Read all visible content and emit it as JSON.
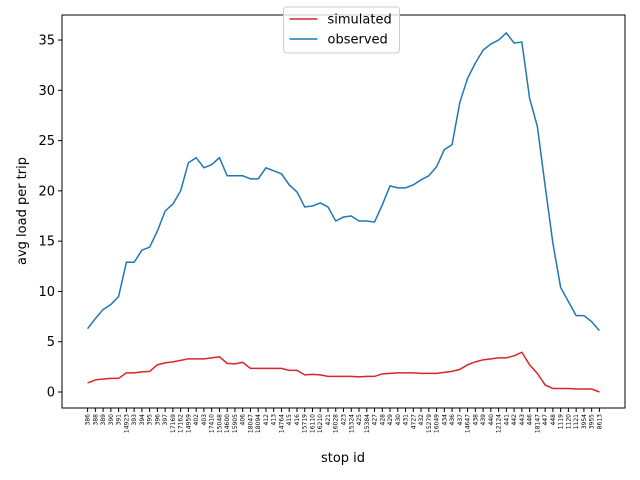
{
  "chart_data": {
    "type": "line",
    "xlabel": "stop id",
    "ylabel": "avg load per trip",
    "categories": [
      "386",
      "388",
      "389",
      "390",
      "391",
      "14923",
      "393",
      "394",
      "395",
      "396",
      "397",
      "17169",
      "17162",
      "14959",
      "402",
      "403",
      "17410",
      "15048",
      "14600",
      "15905",
      "406",
      "18047",
      "18094",
      "412",
      "413",
      "14764",
      "415",
      "416",
      "15719",
      "16110",
      "16210",
      "421",
      "16028",
      "423",
      "15324",
      "425",
      "15384",
      "427",
      "428",
      "429",
      "430",
      "431",
      "4727",
      "432",
      "15279",
      "16049",
      "434",
      "436",
      "437",
      "14647",
      "438",
      "439",
      "440",
      "12124",
      "441",
      "442",
      "443",
      "446",
      "18147",
      "447",
      "448",
      "1119",
      "1120",
      "1121",
      "3954",
      "3955",
      "8613"
    ],
    "series": [
      {
        "name": "simulated",
        "color": "#d62728",
        "values": [
          0.9,
          1.2,
          1.3,
          1.35,
          1.35,
          1.9,
          1.9,
          2.0,
          2.05,
          2.7,
          2.9,
          3.0,
          3.15,
          3.3,
          3.3,
          3.3,
          3.4,
          3.5,
          2.85,
          2.8,
          2.95,
          2.35,
          2.35,
          2.35,
          2.35,
          2.35,
          2.15,
          2.15,
          1.7,
          1.75,
          1.7,
          1.55,
          1.55,
          1.55,
          1.55,
          1.5,
          1.55,
          1.55,
          1.8,
          1.85,
          1.9,
          1.9,
          1.9,
          1.85,
          1.85,
          1.85,
          1.95,
          2.05,
          2.25,
          2.7,
          3.0,
          3.2,
          3.3,
          3.4,
          3.4,
          3.6,
          3.95,
          2.7,
          1.85,
          0.7,
          0.35,
          0.35,
          0.35,
          0.3,
          0.3,
          0.3,
          0.0
        ]
      },
      {
        "name": "observed",
        "color": "#1f77b4",
        "values": [
          6.3,
          7.3,
          8.2,
          8.7,
          9.5,
          12.9,
          12.9,
          14.1,
          14.4,
          16.0,
          18.0,
          18.7,
          20.0,
          22.8,
          23.3,
          22.3,
          22.6,
          23.3,
          21.5,
          21.5,
          21.5,
          21.2,
          21.2,
          22.3,
          22.0,
          21.7,
          20.6,
          19.9,
          18.4,
          18.5,
          18.8,
          18.4,
          17.0,
          17.4,
          17.5,
          17.0,
          17.0,
          16.9,
          18.6,
          20.5,
          20.3,
          20.3,
          20.6,
          21.1,
          21.5,
          22.4,
          24.1,
          24.6,
          28.8,
          31.2,
          32.7,
          34.0,
          34.6,
          35.0,
          35.7,
          34.7,
          34.8,
          29.2,
          26.4,
          20.5,
          14.8,
          10.4,
          9.0,
          7.6,
          7.6,
          7.0,
          6.1
        ]
      }
    ],
    "ylim": [
      -1.59,
      37.49
    ],
    "yticks": [
      0,
      5,
      10,
      15,
      20,
      25,
      30,
      35
    ],
    "legend": "upper center",
    "grid": false
  }
}
